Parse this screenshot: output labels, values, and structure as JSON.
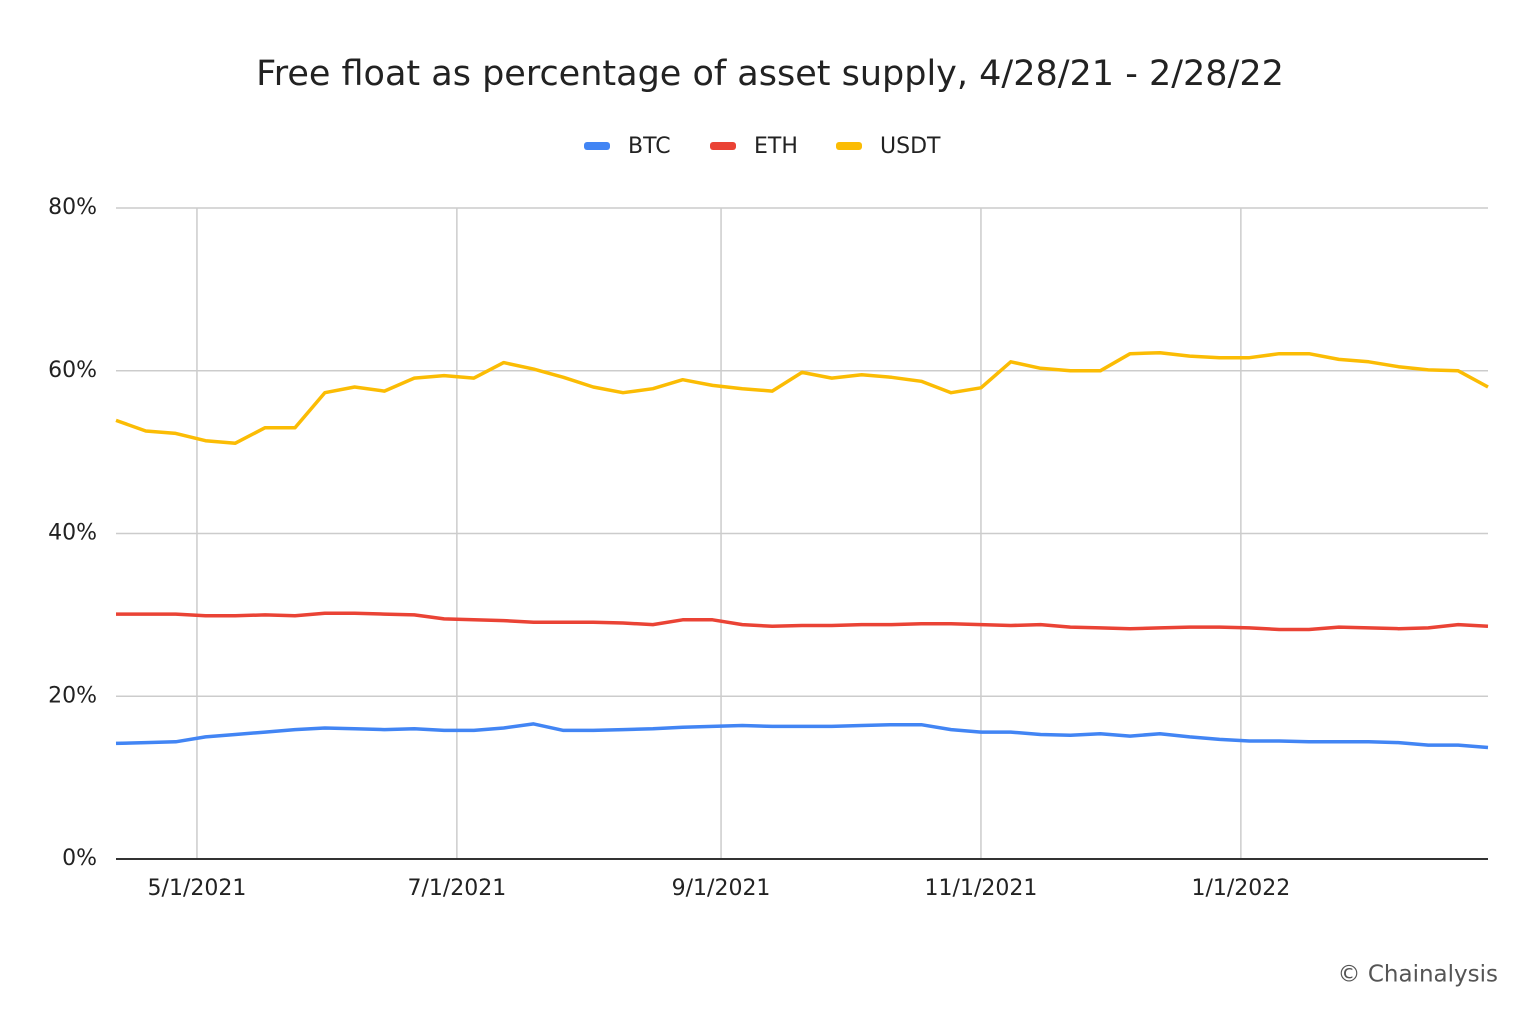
{
  "chart_data": {
    "type": "line",
    "title": "Free float as percentage of asset supply, 4/28/21 -  2/28/22",
    "footer": "© Chainalysis",
    "x": [
      "2021-04-12",
      "2021-04-19",
      "2021-04-26",
      "2021-05-03",
      "2021-05-10",
      "2021-05-17",
      "2021-05-24",
      "2021-05-31",
      "2021-06-07",
      "2021-06-14",
      "2021-06-21",
      "2021-06-28",
      "2021-07-05",
      "2021-07-12",
      "2021-07-19",
      "2021-07-26",
      "2021-08-02",
      "2021-08-09",
      "2021-08-16",
      "2021-08-23",
      "2021-08-30",
      "2021-09-06",
      "2021-09-13",
      "2021-09-20",
      "2021-09-27",
      "2021-10-04",
      "2021-10-11",
      "2021-10-18",
      "2021-10-25",
      "2021-11-01",
      "2021-11-08",
      "2021-11-15",
      "2021-11-22",
      "2021-11-29",
      "2021-12-06",
      "2021-12-13",
      "2021-12-20",
      "2021-12-27",
      "2022-01-03",
      "2022-01-10",
      "2022-01-17",
      "2022-01-24",
      "2022-01-31",
      "2022-02-07",
      "2022-02-14",
      "2022-02-21",
      "2022-02-28"
    ],
    "series": [
      {
        "name": "BTC",
        "color": "#4285f4",
        "values": [
          14.2,
          14.3,
          14.4,
          15.0,
          15.3,
          15.6,
          15.9,
          16.1,
          16.0,
          15.9,
          16.0,
          15.8,
          15.8,
          16.1,
          16.6,
          15.8,
          15.8,
          15.9,
          16.0,
          16.2,
          16.3,
          16.4,
          16.3,
          16.3,
          16.3,
          16.4,
          16.5,
          16.5,
          15.9,
          15.6,
          15.6,
          15.3,
          15.2,
          15.4,
          15.1,
          15.4,
          15.0,
          14.7,
          14.5,
          14.5,
          14.4,
          14.4,
          14.4,
          14.3,
          14.0,
          14.0,
          13.7
        ]
      },
      {
        "name": "ETH",
        "color": "#ea4335",
        "values": [
          30.1,
          30.1,
          30.1,
          29.9,
          29.9,
          30.0,
          29.9,
          30.2,
          30.2,
          30.1,
          30.0,
          29.5,
          29.4,
          29.3,
          29.1,
          29.1,
          29.1,
          29.0,
          28.8,
          29.4,
          29.4,
          28.8,
          28.6,
          28.7,
          28.7,
          28.8,
          28.8,
          28.9,
          28.9,
          28.8,
          28.7,
          28.8,
          28.5,
          28.4,
          28.3,
          28.4,
          28.5,
          28.5,
          28.4,
          28.2,
          28.2,
          28.5,
          28.4,
          28.3,
          28.4,
          28.8,
          28.6
        ]
      },
      {
        "name": "USDT",
        "color": "#fbbc04",
        "values": [
          53.9,
          52.6,
          52.3,
          51.4,
          51.1,
          53.0,
          53.0,
          57.3,
          58.0,
          57.5,
          59.1,
          59.4,
          59.1,
          61.0,
          60.2,
          59.2,
          58.0,
          57.3,
          57.8,
          58.9,
          58.2,
          57.8,
          57.5,
          59.8,
          59.1,
          59.5,
          59.2,
          58.7,
          57.3,
          57.9,
          61.1,
          60.3,
          60.0,
          60.0,
          62.1,
          62.2,
          61.8,
          61.6,
          61.6,
          62.1,
          62.1,
          61.4,
          61.1,
          60.5,
          60.1,
          60.0,
          58.0
        ]
      }
    ],
    "xlim": [
      "2021-04-12",
      "2022-02-28"
    ],
    "xticks": [
      {
        "value": "2021-05-01",
        "label": "5/1/2021"
      },
      {
        "value": "2021-07-01",
        "label": "7/1/2021"
      },
      {
        "value": "2021-09-01",
        "label": "9/1/2021"
      },
      {
        "value": "2021-11-01",
        "label": "11/1/2021"
      },
      {
        "value": "2022-01-01",
        "label": "1/1/2022"
      }
    ],
    "ylim": [
      0,
      80
    ],
    "yticks": [
      {
        "value": 0,
        "label": "0%"
      },
      {
        "value": 20,
        "label": "20%"
      },
      {
        "value": 40,
        "label": "40%"
      },
      {
        "value": 60,
        "label": "60%"
      },
      {
        "value": 80,
        "label": "80%"
      }
    ],
    "grid": true,
    "legend": "top"
  }
}
